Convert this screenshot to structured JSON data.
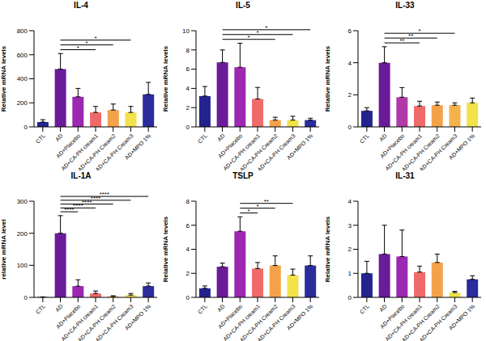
{
  "chart_data": [
    {
      "type": "bar",
      "title": "IL-4",
      "ylabel": "Relative mRNA levels",
      "categories": [
        "CTL",
        "AD",
        "AD+Placebo",
        "AD+CA-PH cream1",
        "AD+CA-PH Cream2",
        "AD+CA-PH Cream3",
        "AD+MPO 1%"
      ],
      "values": [
        40,
        480,
        250,
        120,
        140,
        120,
        270
      ],
      "errors": [
        20,
        130,
        70,
        50,
        50,
        50,
        100
      ],
      "colors": [
        "#23238e",
        "#6a1b9a",
        "#9c27b0",
        "#f06a6a",
        "#f4a24a",
        "#f2e24b",
        "#2b2b9b"
      ],
      "ylim": [
        0,
        800
      ],
      "yticks": [
        0,
        200,
        400,
        600,
        800
      ],
      "grid": false,
      "significance": [
        {
          "from": "AD",
          "to": "AD+CA-PH cream1",
          "label": "*"
        },
        {
          "from": "AD",
          "to": "AD+CA-PH Cream2",
          "label": "*"
        },
        {
          "from": "AD",
          "to": "AD+CA-PH Cream3",
          "label": "*"
        }
      ]
    },
    {
      "type": "bar",
      "title": "IL-5",
      "ylabel": "Relative mRNA levels",
      "categories": [
        "CTL",
        "AD",
        "AD+Placebo",
        "AD+CA-PH cream1",
        "AD+CA-PH Cream2",
        "AD+CA-PH Cream3",
        "AD+MPO 1%"
      ],
      "values": [
        3.2,
        6.7,
        6.2,
        2.9,
        0.7,
        0.7,
        0.7
      ],
      "errors": [
        1,
        1.3,
        2.5,
        1.2,
        0.3,
        0.4,
        0.2
      ],
      "colors": [
        "#23238e",
        "#6a1b9a",
        "#9c27b0",
        "#f06a6a",
        "#f4a24a",
        "#f2e24b",
        "#2b2b9b"
      ],
      "ylim": [
        0,
        10
      ],
      "yticks": [
        0,
        2,
        4,
        6,
        8,
        10
      ],
      "grid": false,
      "significance": [
        {
          "from": "AD",
          "to": "AD+CA-PH Cream2",
          "label": "*"
        },
        {
          "from": "AD",
          "to": "AD+CA-PH Cream3",
          "label": "*"
        },
        {
          "from": "AD",
          "to": "AD+MPO 1%",
          "label": "*"
        }
      ]
    },
    {
      "type": "bar",
      "title": "IL-33",
      "ylabel": "Relative mRNA levels",
      "categories": [
        "CTL",
        "AD",
        "AD+Placebo",
        "AD+CA-PH cream1",
        "AD+CA-PH Cream2",
        "AD+CA-PH Cream3",
        "AD+MPO 1%"
      ],
      "values": [
        1,
        4,
        1.85,
        1.3,
        1.35,
        1.35,
        1.5
      ],
      "errors": [
        0.2,
        1,
        0.6,
        0.3,
        0.2,
        0.15,
        0.3
      ],
      "colors": [
        "#23238e",
        "#6a1b9a",
        "#b03aa8",
        "#f06a6a",
        "#f4a24a",
        "#f4b24a",
        "#f2e24b"
      ],
      "ylim": [
        0,
        6
      ],
      "yticks": [
        0,
        2,
        4,
        6
      ],
      "grid": false,
      "significance": [
        {
          "from": "AD",
          "to": "AD+CA-PH cream1",
          "label": "**"
        },
        {
          "from": "AD",
          "to": "AD+CA-PH Cream2",
          "label": "**"
        },
        {
          "from": "AD",
          "to": "AD+CA-PH Cream3",
          "label": "*"
        }
      ]
    },
    {
      "type": "bar",
      "title": "IL-1A",
      "ylabel": "relative mRNA level",
      "categories": [
        "CTL",
        "AD",
        "AD+Placebo",
        "AD+CA-PH cream1",
        "AD+CA-PH Cream2",
        "AD+CA-PH Cream3",
        "AD+MPO 1%"
      ],
      "values": [
        1,
        200,
        35,
        12,
        3,
        7,
        35
      ],
      "errors": [
        0.5,
        55,
        20,
        8,
        2,
        5,
        10
      ],
      "colors": [
        "#23238e",
        "#6a1b9a",
        "#9c27b0",
        "#f06a6a",
        "#f4a24a",
        "#f2e24b",
        "#2b2b9b"
      ],
      "ylim": [
        0,
        300
      ],
      "yticks": [
        0,
        100,
        200,
        300
      ],
      "grid": false,
      "significance": [
        {
          "from": "AD",
          "to": "AD+Placebo",
          "label": "****"
        },
        {
          "from": "AD",
          "to": "AD+CA-PH cream1",
          "label": "****"
        },
        {
          "from": "AD",
          "to": "AD+CA-PH Cream2",
          "label": "****"
        },
        {
          "from": "AD",
          "to": "AD+CA-PH Cream3",
          "label": "****"
        },
        {
          "from": "AD",
          "to": "AD+MPO 1%",
          "label": "****"
        }
      ]
    },
    {
      "type": "bar",
      "title": "TSLP",
      "ylabel": "Relative mRNA levels",
      "categories": [
        "CTL",
        "AD",
        "AD+Placebo",
        "AD+CA-PH cream1",
        "AD+CA-PH Cream2",
        "AD+CA-PH Cream3",
        "AD+MPO 1%"
      ],
      "values": [
        0.75,
        2.55,
        5.5,
        2.4,
        2.65,
        1.85,
        2.65
      ],
      "errors": [
        0.2,
        0.3,
        1.2,
        0.5,
        0.8,
        0.5,
        0.8
      ],
      "colors": [
        "#23238e",
        "#6a1b9a",
        "#9c27b0",
        "#f06a6a",
        "#f4a24a",
        "#f2e24b",
        "#2b2b9b"
      ],
      "ylim": [
        0,
        8
      ],
      "yticks": [
        0,
        2,
        4,
        6,
        8
      ],
      "grid": false,
      "significance": [
        {
          "from": "AD+Placebo",
          "to": "AD+CA-PH cream1",
          "label": "*"
        },
        {
          "from": "AD+Placebo",
          "to": "AD+CA-PH Cream2",
          "label": "*"
        },
        {
          "from": "AD+Placebo",
          "to": "AD+CA-PH Cream3",
          "label": "**"
        }
      ]
    },
    {
      "type": "bar",
      "title": "IL-31",
      "ylabel": "Relative mRNA levels",
      "categories": [
        "CTL",
        "AD",
        "AD+Placebo",
        "AD+CA-PH cream1",
        "AD+CA-PH Cream2",
        "AD+CA-PH Cream3",
        "AD+MPO 1%"
      ],
      "values": [
        1,
        1.8,
        1.7,
        1.05,
        1.45,
        0.2,
        0.75
      ],
      "errors": [
        0.5,
        1.2,
        1.1,
        0.25,
        0.35,
        0.05,
        0.15
      ],
      "colors": [
        "#23238e",
        "#6a1b9a",
        "#9c27b0",
        "#f06a6a",
        "#f4a24a",
        "#f2e24b",
        "#2b2b9b"
      ],
      "ylim": [
        0,
        4
      ],
      "yticks": [
        0,
        1,
        2,
        3,
        4
      ],
      "grid": false,
      "significance": []
    }
  ]
}
